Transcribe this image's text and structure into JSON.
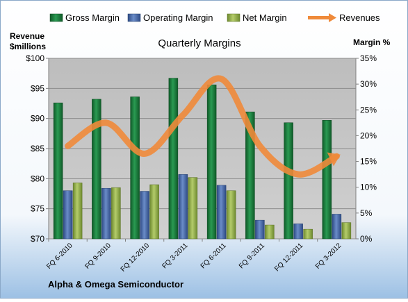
{
  "chart_data": {
    "type": "bar",
    "title": "Quarterly Margins",
    "categories": [
      "FQ 6-2010",
      "FQ 9-2010",
      "FQ 12-2010",
      "FQ 3-2011",
      "FQ 6-2011",
      "FQ 9-2011",
      "FQ 12-2011",
      "FQ 3-2012"
    ],
    "series": [
      {
        "name": "Gross Margin",
        "type": "bar",
        "axis": "left",
        "values": [
          92.6,
          93.2,
          93.6,
          96.7,
          95.6,
          91.1,
          89.3,
          89.7
        ]
      },
      {
        "name": "Operating Margin",
        "type": "bar",
        "axis": "left",
        "values": [
          78.0,
          78.4,
          77.9,
          80.7,
          78.9,
          73.1,
          72.5,
          74.1
        ]
      },
      {
        "name": "Net Margin",
        "type": "bar",
        "axis": "left",
        "values": [
          79.3,
          78.5,
          79.0,
          80.2,
          78.0,
          72.3,
          71.6,
          72.7
        ]
      },
      {
        "name": "Revenues",
        "type": "line",
        "axis": "right",
        "values": [
          18.0,
          22.5,
          16.5,
          24.0,
          31.0,
          18.0,
          12.5,
          16.0
        ]
      }
    ],
    "left_axis": {
      "label_line1": "Revenue",
      "label_line2": "$millions",
      "min": 70,
      "max": 100,
      "step": 5,
      "tick_prefix": "$",
      "tick_suffix": ""
    },
    "right_axis": {
      "label": "Margin %",
      "min": 0,
      "max": 35,
      "step": 5,
      "tick_prefix": "",
      "tick_suffix": "%"
    },
    "grid": true,
    "legend_position": "top",
    "colors": {
      "gross_margin": "#1a7a3a",
      "operating_margin": "#4a6aa8",
      "net_margin": "#98b050",
      "revenues": "#ef8a3a",
      "plot_background": "#c0c0c0",
      "page_top": "#ffffff",
      "page_bottom": "#9cc0e4"
    }
  },
  "footer": "Alpha & Omega Semiconductor"
}
